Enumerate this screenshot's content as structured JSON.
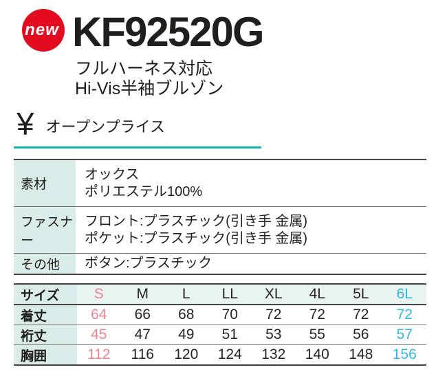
{
  "badge": {
    "label": "new",
    "background_color": "#e30b20"
  },
  "header": {
    "model": "KF92520G",
    "subtitle_line1": "フルハーネス対応",
    "subtitle_line2": "Hi-Vis半袖ブルゾン"
  },
  "price": {
    "currency_symbol": "¥",
    "label": "オープンプライス",
    "underline_color": "#10b5ad"
  },
  "spec_table": {
    "rows": [
      {
        "label": "素材",
        "lines": [
          "オックス",
          "ポリエステル100%"
        ]
      },
      {
        "label": "ファスナー",
        "lines": [
          "フロント:プラスチック(引き手 金属)",
          "ポケット:プラスチック(引き手 金属)"
        ]
      },
      {
        "label": "その他",
        "lines": [
          "ボタン:プラスチック"
        ]
      }
    ]
  },
  "size_table": {
    "header_label": "サイズ",
    "columns": [
      "S",
      "M",
      "L",
      "LL",
      "XL",
      "4L",
      "5L",
      "6L"
    ],
    "rows": [
      {
        "label": "着丈",
        "values": [
          "64",
          "66",
          "68",
          "70",
          "72",
          "72",
          "72",
          "72"
        ]
      },
      {
        "label": "裄丈",
        "values": [
          "45",
          "47",
          "49",
          "51",
          "53",
          "55",
          "56",
          "57"
        ]
      },
      {
        "label": "胸囲",
        "values": [
          "112",
          "116",
          "120",
          "124",
          "132",
          "140",
          "148",
          "156"
        ]
      }
    ],
    "highlight_first_column_color": "#ea8592",
    "highlight_last_column_color": "#36b7d9",
    "label_cell_background": "#d9ece7",
    "header_cell_background": "#e9f4f0"
  }
}
